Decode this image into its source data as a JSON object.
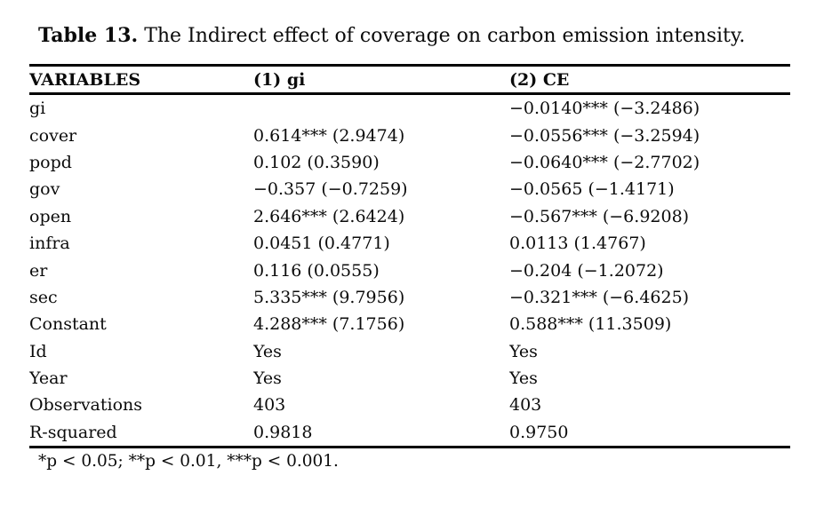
{
  "page": {
    "background": "#ffffff",
    "text_color": "#0b0b0b",
    "rule_color": "#000000"
  },
  "title": {
    "label": "Table 13.",
    "text": "The Indirect effect of coverage on carbon emission intensity."
  },
  "table": {
    "headers": [
      "VARIABLES",
      "(1) gi",
      "(2) CE"
    ],
    "rows": [
      {
        "label": "gi",
        "c1": "",
        "c2": "−0.0140*** (−3.2486)"
      },
      {
        "label": "cover",
        "c1": "0.614*** (2.9474)",
        "c2": "−0.0556*** (−3.2594)"
      },
      {
        "label": "popd",
        "c1": "0.102 (0.3590)",
        "c2": "−0.0640*** (−2.7702)"
      },
      {
        "label": "gov",
        "c1": "−0.357 (−0.7259)",
        "c2": "−0.0565 (−1.4171)"
      },
      {
        "label": "open",
        "c1": "2.646*** (2.6424)",
        "c2": "−0.567*** (−6.9208)"
      },
      {
        "label": "infra",
        "c1": "0.0451 (0.4771)",
        "c2": "0.0113 (1.4767)"
      },
      {
        "label": "er",
        "c1": "0.116 (0.0555)",
        "c2": "−0.204 (−1.2072)"
      },
      {
        "label": "sec",
        "c1": "5.335*** (9.7956)",
        "c2": "−0.321*** (−6.4625)"
      },
      {
        "label": "Constant",
        "c1": "4.288*** (7.1756)",
        "c2": "0.588*** (11.3509)"
      },
      {
        "label": "Id",
        "c1": "Yes",
        "c2": "Yes"
      },
      {
        "label": "Year",
        "c1": "Yes",
        "c2": "Yes"
      },
      {
        "label": "Observations",
        "c1": "403",
        "c2": "403"
      },
      {
        "label": "R-squared",
        "c1": "0.9818",
        "c2": "0.9750"
      }
    ],
    "footnote": "*p < 0.05; **p < 0.01, ***p < 0.001."
  }
}
